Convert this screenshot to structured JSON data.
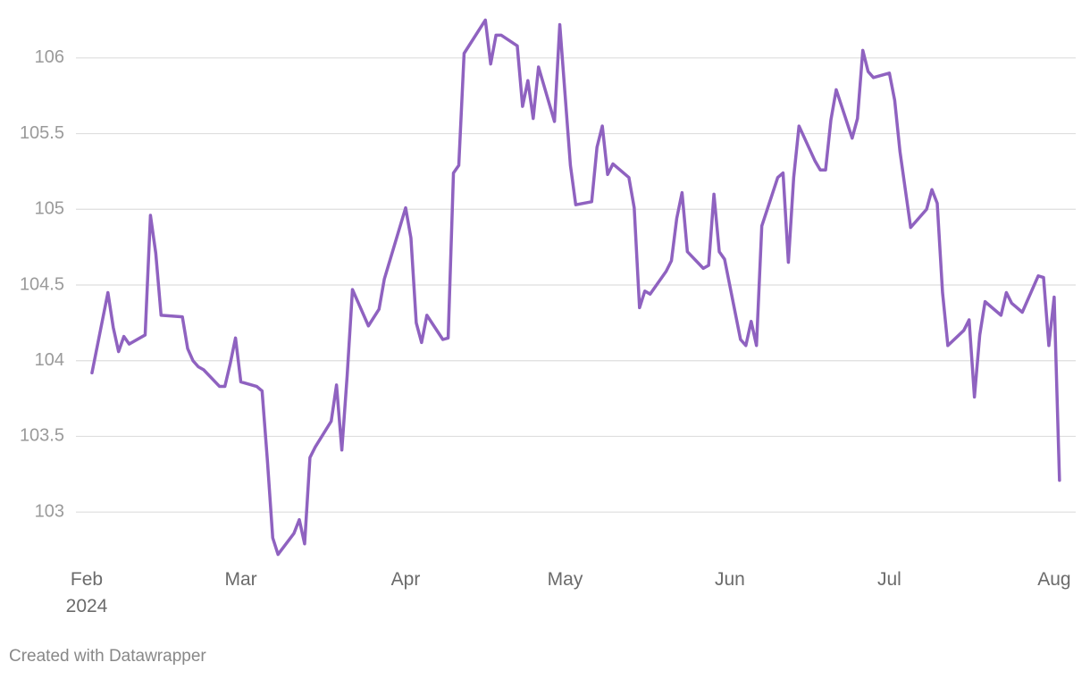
{
  "chart_data": {
    "type": "line",
    "color": "#8f62c0",
    "grid": true,
    "x": [
      1,
      4,
      5,
      6,
      7,
      8,
      11,
      12,
      13,
      14,
      18,
      19,
      20,
      21,
      22,
      25,
      26,
      27,
      28,
      29,
      32,
      33,
      34,
      35,
      36,
      39,
      40,
      41,
      42,
      43,
      46,
      47,
      48,
      49,
      50,
      53,
      55,
      56,
      60,
      61,
      62,
      63,
      64,
      67,
      68,
      69,
      70,
      71,
      75,
      76,
      77,
      78,
      81,
      82,
      83,
      84,
      85,
      88,
      89,
      91,
      92,
      95,
      96,
      97,
      98,
      99,
      102,
      103,
      104,
      105,
      106,
      109,
      110,
      111,
      112,
      113,
      116,
      117,
      118,
      119,
      120,
      123,
      124,
      125,
      126,
      127,
      130,
      131,
      132,
      133,
      134,
      137,
      138,
      139,
      140,
      141,
      144,
      145,
      146,
      147,
      148,
      151,
      152,
      153,
      155,
      158,
      159,
      160,
      161,
      162,
      165,
      166,
      167,
      168,
      169,
      172,
      173,
      174,
      176,
      179,
      180,
      181,
      182,
      183
    ],
    "values": [
      103.92,
      104.45,
      104.22,
      104.06,
      104.16,
      104.11,
      104.17,
      104.96,
      104.71,
      104.3,
      104.29,
      104.08,
      104.0,
      103.96,
      103.94,
      103.83,
      103.83,
      103.98,
      104.15,
      103.86,
      103.83,
      103.8,
      103.34,
      102.83,
      102.72,
      102.86,
      102.95,
      102.79,
      103.36,
      103.43,
      103.6,
      103.84,
      103.41,
      103.9,
      104.47,
      104.23,
      104.34,
      104.54,
      105.01,
      104.81,
      104.25,
      104.12,
      104.3,
      104.14,
      104.15,
      105.24,
      105.29,
      106.03,
      106.25,
      105.96,
      106.15,
      106.15,
      106.08,
      105.68,
      105.85,
      105.6,
      105.94,
      105.58,
      106.22,
      105.29,
      105.03,
      105.05,
      105.41,
      105.55,
      105.23,
      105.3,
      105.21,
      105.01,
      104.35,
      104.46,
      104.44,
      104.59,
      104.66,
      104.94,
      105.11,
      104.72,
      104.61,
      104.63,
      105.1,
      104.72,
      104.67,
      104.14,
      104.1,
      104.26,
      104.1,
      104.89,
      105.21,
      105.24,
      104.65,
      105.21,
      105.55,
      105.32,
      105.26,
      105.26,
      105.59,
      105.79,
      105.47,
      105.6,
      106.05,
      105.91,
      105.87,
      105.9,
      105.72,
      105.38,
      104.88,
      105.0,
      105.13,
      105.04,
      104.45,
      104.1,
      104.2,
      104.27,
      103.76,
      104.17,
      104.39,
      104.3,
      104.45,
      104.38,
      104.32,
      104.56,
      104.55,
      104.1,
      104.42,
      103.21
    ],
    "xlim": [
      0,
      186
    ],
    "xticks": [
      {
        "value": 0,
        "label": "Feb\n2024"
      },
      {
        "value": 29,
        "label": "Mar"
      },
      {
        "value": 60,
        "label": "Apr"
      },
      {
        "value": 90,
        "label": "May"
      },
      {
        "value": 121,
        "label": "Jun"
      },
      {
        "value": 151,
        "label": "Jul"
      },
      {
        "value": 182,
        "label": "Aug"
      }
    ],
    "ylim": [
      102.7,
      106.3
    ],
    "yticks": [
      103,
      103.5,
      104,
      104.5,
      105,
      105.5,
      106
    ]
  },
  "credit": "Created with Datawrapper"
}
